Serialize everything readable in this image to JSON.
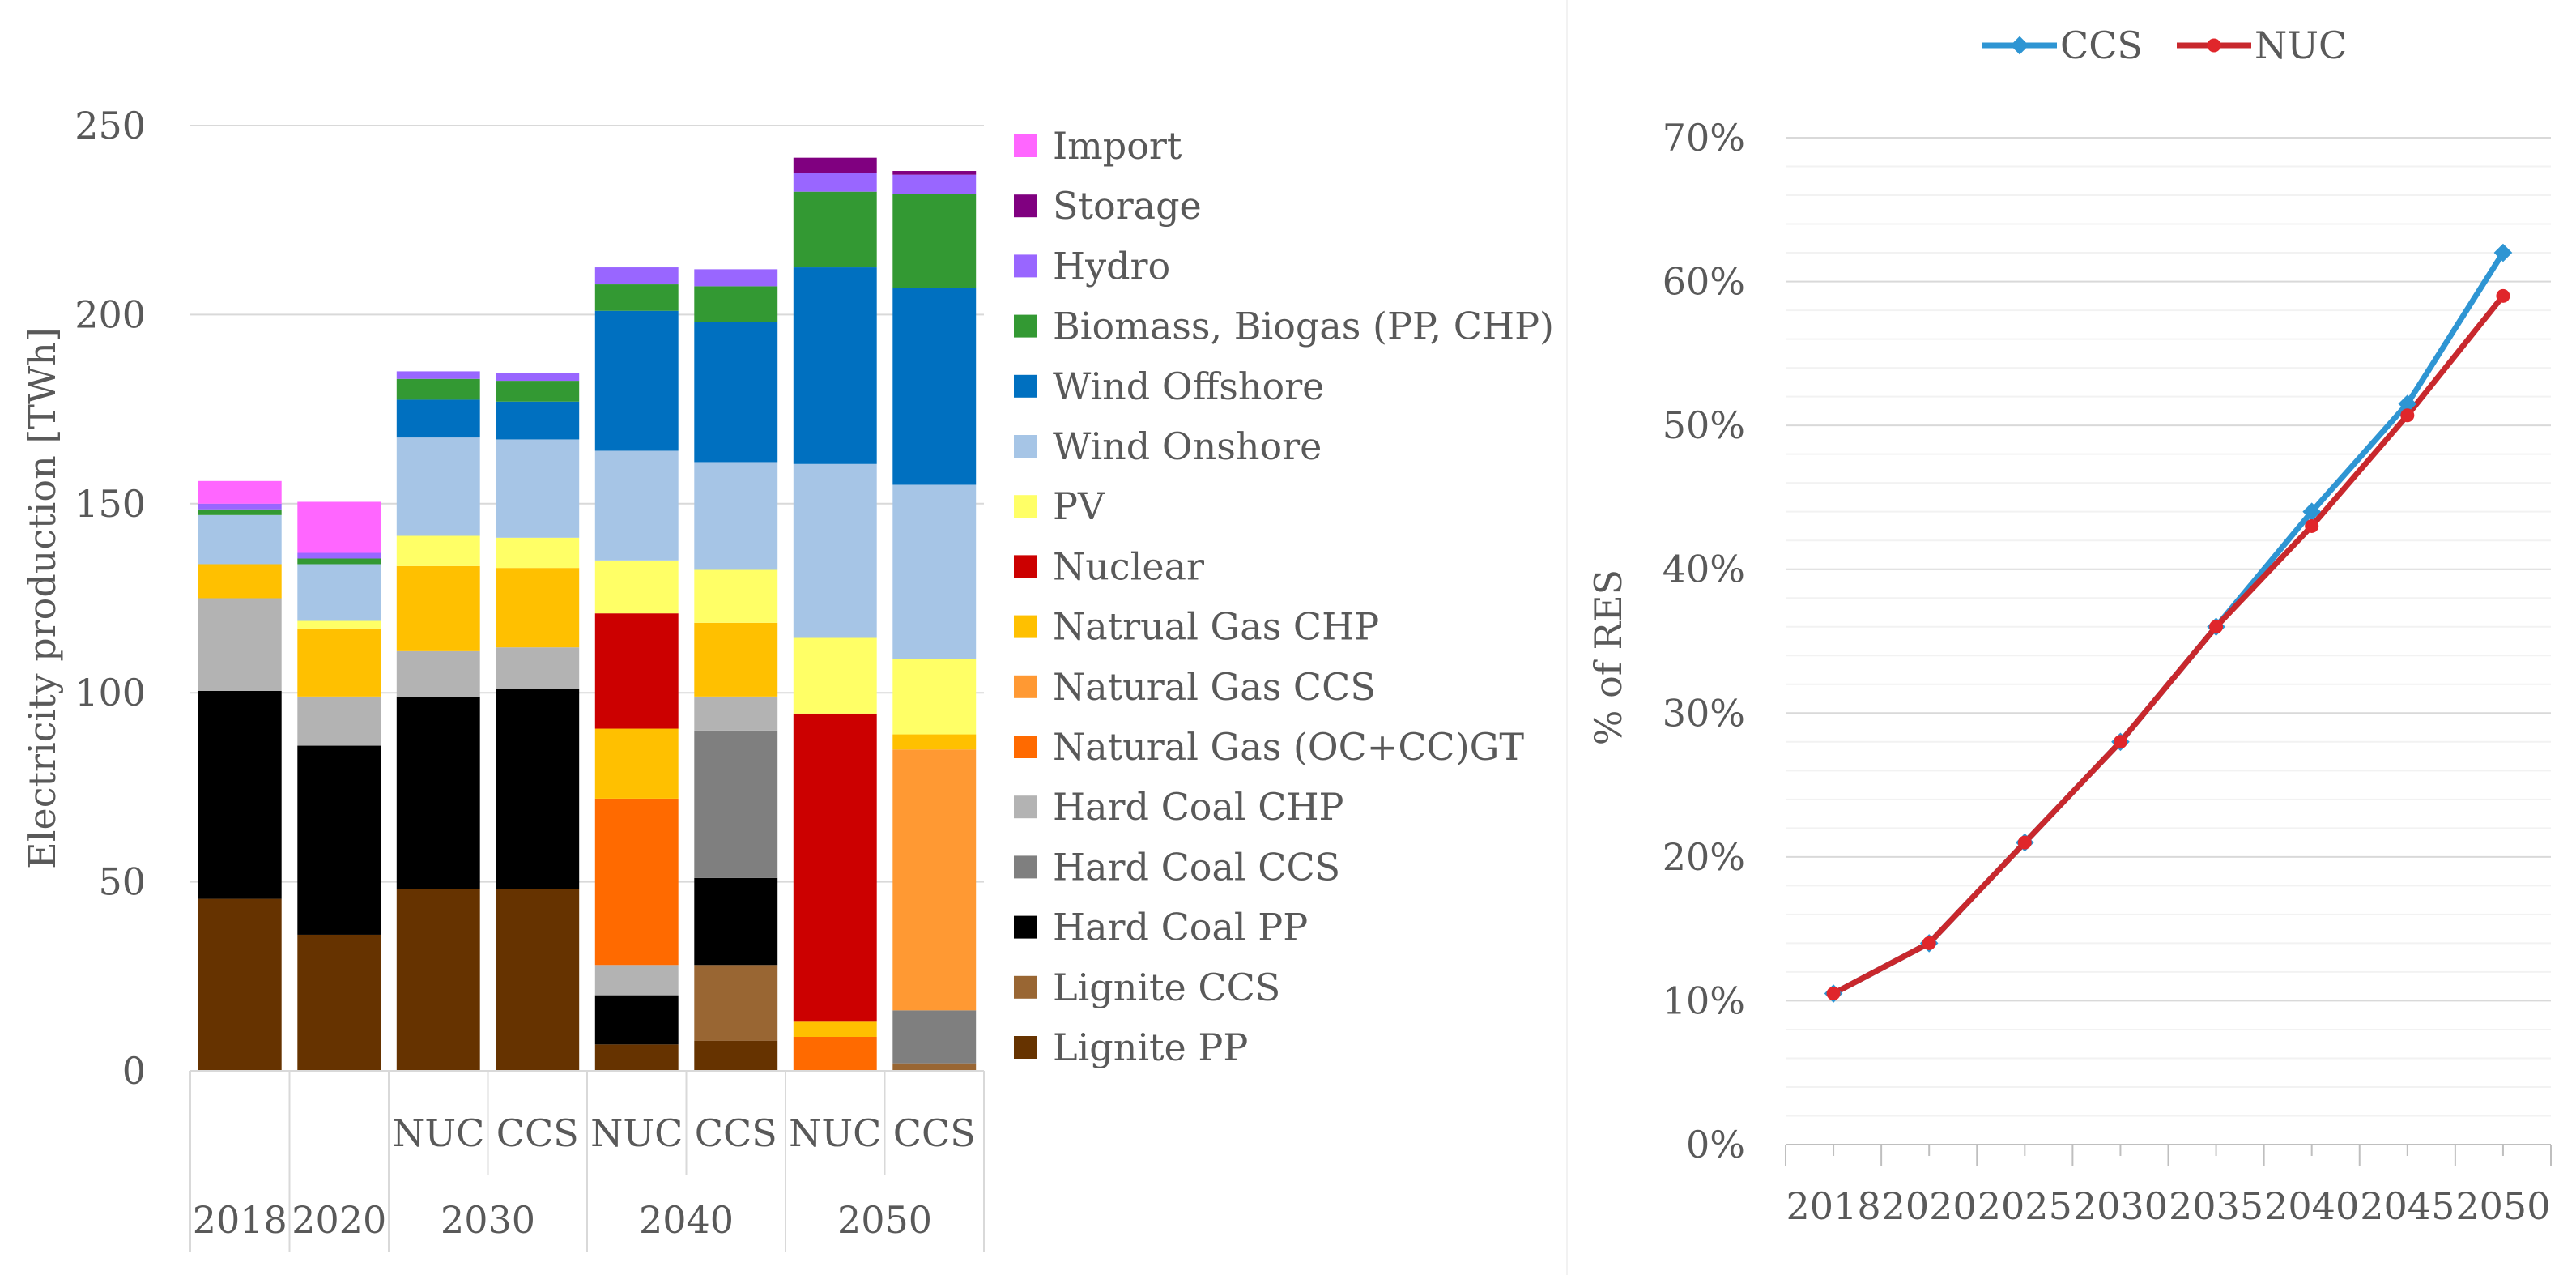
{
  "chart_data": [
    {
      "type": "bar",
      "stacked": true,
      "title": "",
      "xlabel": "",
      "ylabel": "Electricity production [TWh]",
      "ylim": [
        0,
        250
      ],
      "yticks": [
        "0",
        "50",
        "100",
        "150",
        "200",
        "250"
      ],
      "categories": [
        {
          "sub": "",
          "group": "2018"
        },
        {
          "sub": "",
          "group": "2020"
        },
        {
          "sub": "NUC",
          "group": "2030"
        },
        {
          "sub": "CCS",
          "group": "2030"
        },
        {
          "sub": "NUC",
          "group": "2040"
        },
        {
          "sub": "CCS",
          "group": "2040"
        },
        {
          "sub": "NUC",
          "group": "2050"
        },
        {
          "sub": "CCS",
          "group": "2050"
        }
      ],
      "groups": [
        "2018",
        "2020",
        "2030",
        "2040",
        "2050"
      ],
      "series": [
        {
          "name": "Lignite PP",
          "color": "#663300",
          "values": [
            45.5,
            36,
            48,
            48,
            7,
            8,
            0,
            0
          ]
        },
        {
          "name": "Lignite CCS",
          "color": "#996633",
          "values": [
            0,
            0,
            0,
            0,
            0,
            20,
            0,
            2
          ]
        },
        {
          "name": "Hard Coal PP",
          "color": "#000000",
          "values": [
            55,
            50,
            51,
            53,
            13,
            23,
            0,
            0
          ]
        },
        {
          "name": "Hard Coal CCS",
          "color": "#7f7f7f",
          "values": [
            0,
            0,
            0,
            0,
            0,
            39,
            0,
            14
          ]
        },
        {
          "name": "Hard Coal CHP",
          "color": "#b3b3b3",
          "values": [
            24.5,
            13,
            12,
            11,
            8,
            9,
            0,
            0
          ]
        },
        {
          "name": "Natural Gas (OC+CC)GT",
          "color": "#ff6a00",
          "values": [
            0,
            0,
            0,
            0,
            44,
            0,
            9,
            0
          ]
        },
        {
          "name": "Natural Gas CCS",
          "color": "#ff9933",
          "values": [
            0,
            0,
            0,
            0,
            0,
            0,
            0,
            69
          ]
        },
        {
          "name": "Natrual Gas CHP",
          "color": "#ffc000",
          "values": [
            9,
            18,
            22.5,
            21,
            18.5,
            19.5,
            4,
            4
          ]
        },
        {
          "name": "Nuclear",
          "color": "#cc0000",
          "values": [
            0,
            0,
            0,
            0,
            30.5,
            0,
            81.5,
            0
          ]
        },
        {
          "name": "PV",
          "color": "#ffff66",
          "values": [
            0,
            2,
            8,
            8,
            14,
            14,
            20,
            20
          ]
        },
        {
          "name": "Wind Onshore",
          "color": "#a6c5e6",
          "values": [
            13,
            15,
            26,
            26,
            29,
            28.5,
            46,
            46
          ]
        },
        {
          "name": "Wind Offshore",
          "color": "#0070c0",
          "values": [
            0,
            0,
            10,
            10,
            37,
            37,
            52,
            52
          ]
        },
        {
          "name": "Biomass, Biogas (PP, CHP)",
          "color": "#339933",
          "values": [
            1.5,
            1.5,
            5.5,
            5.5,
            7,
            9.5,
            20,
            25
          ]
        },
        {
          "name": "Hydro",
          "color": "#9966ff",
          "values": [
            1.5,
            1.5,
            2,
            2,
            4.5,
            4.5,
            5,
            5
          ]
        },
        {
          "name": "Storage",
          "color": "#800080",
          "values": [
            0,
            0,
            0,
            0,
            0,
            0,
            4,
            1
          ]
        },
        {
          "name": "Import",
          "color": "#ff66ff",
          "values": [
            6,
            13.5,
            0,
            0,
            0,
            0,
            0,
            0
          ]
        }
      ]
    },
    {
      "type": "line",
      "title": "",
      "xlabel": "",
      "ylabel": "% of RES",
      "ylim": [
        0,
        70
      ],
      "yticks": [
        "0%",
        "10%",
        "20%",
        "30%",
        "40%",
        "50%",
        "60%",
        "70%"
      ],
      "x": [
        "2018",
        "2020",
        "2025",
        "2030",
        "2035",
        "2040",
        "2045",
        "2050"
      ],
      "legend_position": "top",
      "series": [
        {
          "name": "CCS",
          "color": "#2e95d3",
          "values": [
            10.5,
            14,
            21,
            28,
            36,
            44,
            51.5,
            62
          ]
        },
        {
          "name": "NUC",
          "color": "#c8282d",
          "values": [
            10.5,
            14,
            21,
            28,
            36,
            43,
            50.7,
            59
          ]
        }
      ]
    }
  ]
}
